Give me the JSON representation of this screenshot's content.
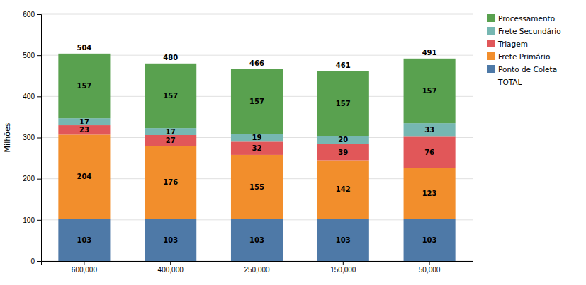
{
  "chart_data": {
    "type": "bar",
    "stacked": true,
    "data_labels": true,
    "grid": true,
    "legend": "upper right",
    "ylabel": "Milhões",
    "categories": [
      "600,000",
      "400,000",
      "250,000",
      "150,000",
      "50,000"
    ],
    "series": [
      {
        "name": "Ponto de Coleta",
        "values": [
          103,
          103,
          103,
          103,
          103
        ]
      },
      {
        "name": "Frete Primário",
        "values": [
          204,
          176,
          155,
          142,
          123
        ]
      },
      {
        "name": "Triagem",
        "values": [
          23,
          27,
          32,
          39,
          76
        ]
      },
      {
        "name": "Frete Secundário",
        "values": [
          17,
          17,
          19,
          20,
          33
        ]
      },
      {
        "name": "Processamento",
        "values": [
          157,
          157,
          157,
          157,
          157
        ]
      }
    ],
    "totals": {
      "name": "TOTAL",
      "values": [
        504,
        480,
        466,
        461,
        491
      ]
    },
    "ylim": [
      0,
      600
    ],
    "yticks": [
      0,
      100,
      200,
      300,
      400,
      500,
      600
    ]
  }
}
